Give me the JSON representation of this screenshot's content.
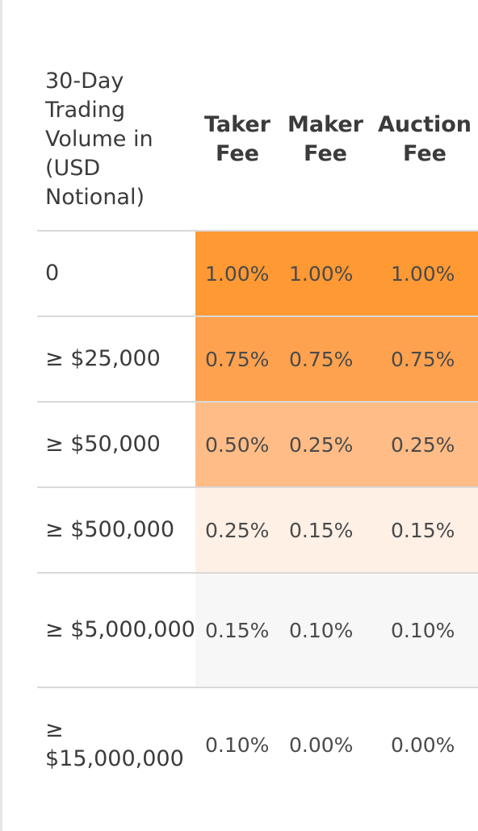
{
  "table": {
    "headers": {
      "volume": "30-Day Trading Volume in (USD Notional)",
      "taker": "Taker Fee",
      "maker": "Maker Fee",
      "auction": "Auction Fee"
    },
    "rows": [
      {
        "volume": "0",
        "taker": "1.00%",
        "maker": "1.00%",
        "auction": "1.00%",
        "highlight": "#ff9933"
      },
      {
        "volume": "≥ $25,000",
        "taker": "0.75%",
        "maker": "0.75%",
        "auction": "0.75%",
        "highlight": "#ffa24f"
      },
      {
        "volume": "≥ $50,000",
        "taker": "0.50%",
        "maker": "0.25%",
        "auction": "0.25%",
        "highlight": "#ffbc87"
      },
      {
        "volume": "≥ $500,000",
        "taker": "0.25%",
        "maker": "0.15%",
        "auction": "0.15%",
        "highlight": "#fff0e6"
      },
      {
        "volume": "≥ $5,000,000",
        "taker": "0.15%",
        "maker": "0.10%",
        "auction": "0.10%",
        "highlight": "#f7f7f7"
      },
      {
        "volume": "≥ $15,000,000",
        "taker": "0.10%",
        "maker": "0.00%",
        "auction": "0.00%",
        "highlight": "#ffffff"
      }
    ]
  },
  "colors": {
    "text": "#3b3b3b",
    "divider": "#d9d9d9",
    "frame": "#e7e7e7"
  }
}
